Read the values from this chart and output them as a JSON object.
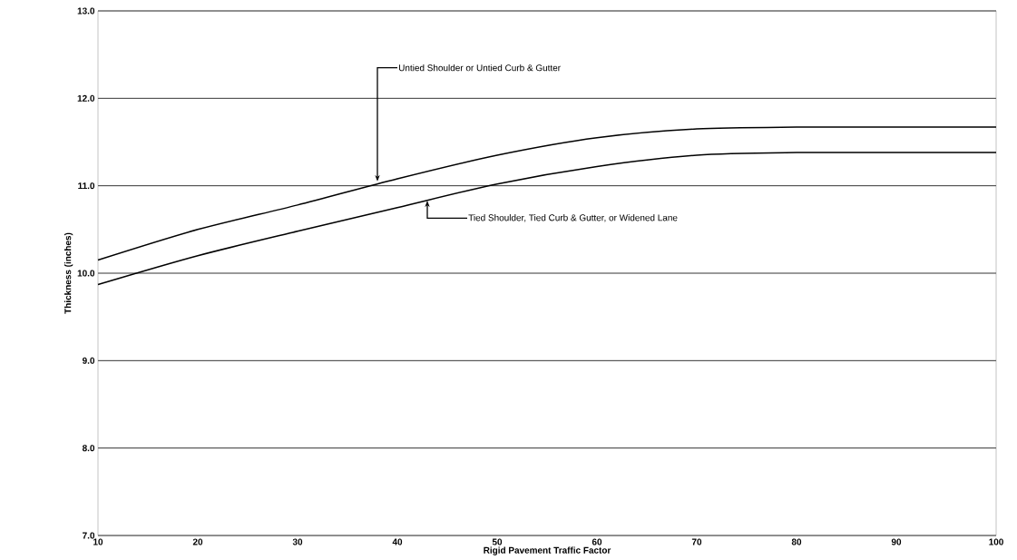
{
  "chart_data": {
    "type": "line",
    "xlabel": "Rigid Pavement Traffic Factor",
    "ylabel": "Thickness (inches)",
    "x": [
      10,
      20,
      30,
      40,
      50,
      60,
      70,
      80,
      90,
      100
    ],
    "series": [
      {
        "color": "#000000",
        "values": [
          10.15,
          10.5,
          10.78,
          11.08,
          11.35,
          11.55,
          11.65,
          11.67,
          11.67,
          11.67
        ]
      },
      {
        "color": "#000000",
        "values": [
          9.87,
          10.2,
          10.48,
          10.75,
          11.02,
          11.22,
          11.35,
          11.38,
          11.38,
          11.38
        ]
      }
    ],
    "xlim": [
      10,
      100
    ],
    "ylim": [
      7,
      13
    ],
    "xticks": [
      10,
      20,
      30,
      40,
      50,
      60,
      70,
      80,
      90,
      100
    ],
    "yticks": [
      {
        "value": 7,
        "label": "7.0"
      },
      {
        "value": 8,
        "label": "8.0"
      },
      {
        "value": 9,
        "label": "9.0"
      },
      {
        "value": 10,
        "label": "10.0"
      },
      {
        "value": 11,
        "label": "11.0"
      },
      {
        "value": 12,
        "label": "12.0"
      },
      {
        "value": 13,
        "label": "13.0"
      }
    ],
    "grid": "y",
    "marker": "none",
    "line_style": "solid",
    "annotations": [
      {
        "text": "Untied Shoulder or Untied Curb & Gutter",
        "x": 38,
        "y": 11.05
      },
      {
        "text": "Tied Shoulder, Tied Curb & Gutter, or Widened Lane",
        "x": 43,
        "y": 10.83
      }
    ]
  }
}
